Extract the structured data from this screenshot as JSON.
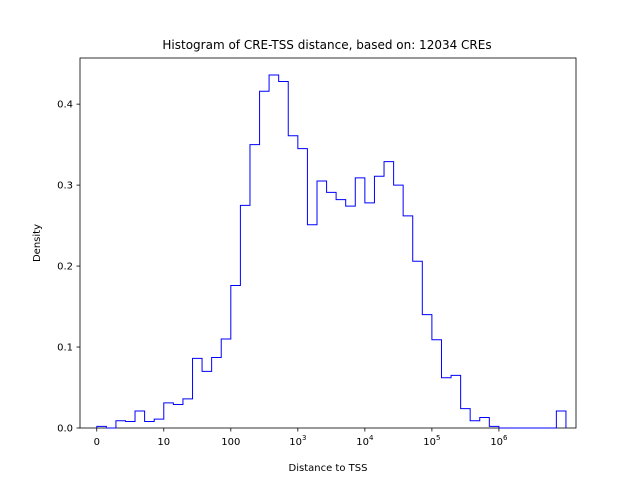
{
  "chart_data": {
    "type": "histogram",
    "title": "Histogram of CRE-TSS distance, based on: 12034 CREs",
    "xlabel": "Distance to TSS",
    "ylabel": "Density",
    "x_scale": "symlog",
    "xlim": [
      -0.25,
      7.15
    ],
    "ylim": [
      0,
      0.457
    ],
    "x_ticks": [
      {
        "value": 0,
        "label": "0"
      },
      {
        "value": 1,
        "label": "10"
      },
      {
        "value": 2,
        "label": "100"
      },
      {
        "value": 3,
        "label": "10",
        "sup": "3"
      },
      {
        "value": 4,
        "label": "10",
        "sup": "4"
      },
      {
        "value": 5,
        "label": "10",
        "sup": "5"
      },
      {
        "value": 6,
        "label": "10",
        "sup": "6"
      }
    ],
    "y_ticks": [
      {
        "value": 0.0,
        "label": "0.0"
      },
      {
        "value": 0.1,
        "label": "0.1"
      },
      {
        "value": 0.2,
        "label": "0.2"
      },
      {
        "value": 0.3,
        "label": "0.3"
      },
      {
        "value": 0.4,
        "label": "0.4"
      }
    ],
    "bin_edges_log10": [
      0,
      0.143,
      0.286,
      0.429,
      0.571,
      0.714,
      0.857,
      1.0,
      1.143,
      1.286,
      1.429,
      1.571,
      1.714,
      1.857,
      2.0,
      2.143,
      2.286,
      2.429,
      2.571,
      2.714,
      2.857,
      3.0,
      3.143,
      3.286,
      3.429,
      3.571,
      3.714,
      3.857,
      4.0,
      4.143,
      4.286,
      4.429,
      4.571,
      4.714,
      4.857,
      5.0,
      5.143,
      5.286,
      5.429,
      5.571,
      5.714,
      5.857,
      6.0,
      6.143,
      6.286,
      6.429,
      6.571,
      6.714,
      6.857,
      7.0
    ],
    "density": [
      0.002,
      0.0,
      0.009,
      0.008,
      0.021,
      0.008,
      0.011,
      0.031,
      0.029,
      0.036,
      0.086,
      0.07,
      0.087,
      0.11,
      0.176,
      0.275,
      0.35,
      0.416,
      0.436,
      0.428,
      0.361,
      0.345,
      0.251,
      0.305,
      0.291,
      0.282,
      0.274,
      0.309,
      0.278,
      0.311,
      0.329,
      0.3,
      0.262,
      0.206,
      0.14,
      0.109,
      0.062,
      0.065,
      0.024,
      0.009,
      0.013,
      0.002,
      0.0,
      0.0,
      0.0,
      0.0,
      0.0,
      0.0,
      0.021
    ],
    "series": [
      {
        "color": "#0000ff",
        "style": "step"
      }
    ]
  }
}
